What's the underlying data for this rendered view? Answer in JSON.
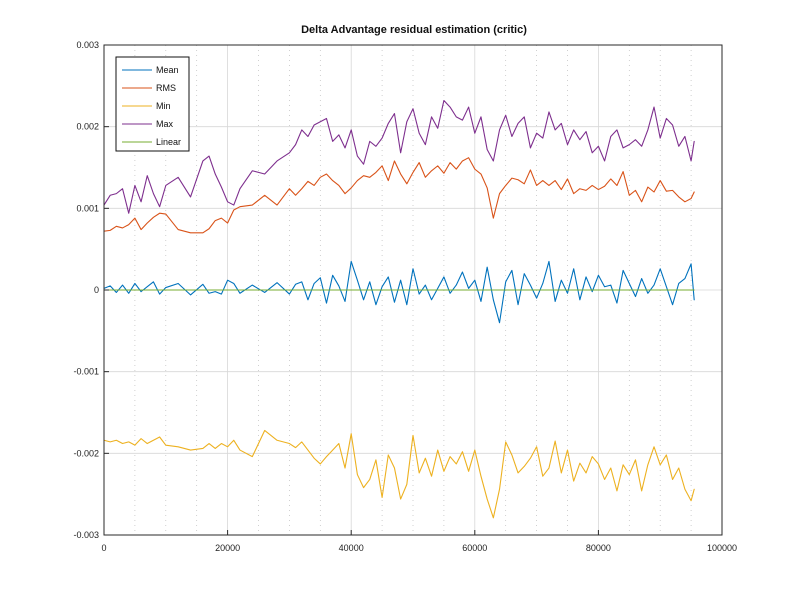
{
  "chart_data": {
    "type": "line",
    "title": "Delta Advantage residual estimation (critic)",
    "xlabel": "",
    "ylabel": "",
    "xlim": [
      0,
      100000
    ],
    "ylim": [
      -0.003,
      0.003
    ],
    "x_ticks": [
      0,
      20000,
      40000,
      60000,
      80000,
      100000
    ],
    "x_tick_labels": [
      "0",
      "20000",
      "40000",
      "60000",
      "80000",
      "100000"
    ],
    "y_ticks": [
      -0.003,
      -0.002,
      -0.001,
      0,
      0.001,
      0.002,
      0.003
    ],
    "y_tick_labels": [
      "-0.003",
      "-0.002",
      "-0.001",
      "0",
      "0.001",
      "0.002",
      "0.003"
    ],
    "grid": true,
    "minor_grid": true,
    "legend_position": "top-left",
    "series": [
      {
        "name": "Mean",
        "color": "#0072bd",
        "x": [
          0,
          1000,
          2000,
          3000,
          4000,
          5000,
          6000,
          7000,
          8000,
          9000,
          10000,
          12000,
          14000,
          16000,
          17000,
          18000,
          19000,
          20000,
          21000,
          22000,
          24000,
          26000,
          28000,
          30000,
          31000,
          32000,
          33000,
          34000,
          35000,
          36000,
          37000,
          38000,
          39000,
          40000,
          41000,
          42000,
          43000,
          44000,
          45000,
          46000,
          47000,
          48000,
          49000,
          50000,
          51000,
          52000,
          53000,
          54000,
          55000,
          56000,
          57000,
          58000,
          59000,
          60000,
          61000,
          62000,
          63000,
          64000,
          65000,
          66000,
          67000,
          68000,
          69000,
          70000,
          71000,
          72000,
          73000,
          74000,
          75000,
          76000,
          77000,
          78000,
          79000,
          80000,
          81000,
          82000,
          83000,
          84000,
          85000,
          86000,
          87000,
          88000,
          89000,
          90000,
          91000,
          92000,
          93000,
          94000,
          95000,
          95500
        ],
        "y": [
          2e-05,
          5e-05,
          -3e-05,
          6e-05,
          -4e-05,
          8e-05,
          -2e-05,
          4e-05,
          0.0001,
          -5e-05,
          3e-05,
          8e-05,
          -6e-05,
          7e-05,
          -4e-05,
          -2e-05,
          -5e-05,
          0.00012,
          8e-05,
          -4e-05,
          6e-05,
          -3e-05,
          9e-05,
          -5e-05,
          7e-05,
          0.0001,
          -0.00012,
          8e-05,
          0.00015,
          -0.00016,
          0.00018,
          5e-05,
          -0.00014,
          0.00035,
          0.00012,
          -0.00012,
          0.0001,
          -0.00018,
          4e-05,
          0.00016,
          -0.00015,
          0.00012,
          -0.00018,
          0.00026,
          -5e-05,
          6e-05,
          -0.00012,
          2e-05,
          0.00016,
          -4e-05,
          6e-05,
          0.00022,
          2e-05,
          0.00012,
          -0.00014,
          0.00028,
          -0.00012,
          -0.0004,
          0.0001,
          0.00024,
          -0.00018,
          0.0002,
          6e-05,
          -0.0001,
          8e-05,
          0.00035,
          -0.00014,
          0.00012,
          -4e-05,
          0.00026,
          -0.00012,
          0.00016,
          -2e-05,
          0.00018,
          4e-05,
          6e-05,
          -0.00016,
          0.00024,
          8e-05,
          -8e-05,
          0.00014,
          -4e-05,
          6e-05,
          0.00026,
          4e-05,
          -0.00018,
          8e-05,
          0.00014,
          0.00032,
          -0.00012
        ]
      },
      {
        "name": "RMS",
        "color": "#d95319",
        "x": [
          0,
          1000,
          2000,
          3000,
          4000,
          5000,
          6000,
          7000,
          8000,
          9000,
          10000,
          12000,
          14000,
          16000,
          17000,
          18000,
          19000,
          20000,
          21000,
          22000,
          24000,
          26000,
          28000,
          30000,
          31000,
          32000,
          33000,
          34000,
          35000,
          36000,
          37000,
          38000,
          39000,
          40000,
          41000,
          42000,
          43000,
          44000,
          45000,
          46000,
          47000,
          48000,
          49000,
          50000,
          51000,
          52000,
          53000,
          54000,
          55000,
          56000,
          57000,
          58000,
          59000,
          60000,
          61000,
          62000,
          63000,
          64000,
          65000,
          66000,
          67000,
          68000,
          69000,
          70000,
          71000,
          72000,
          73000,
          74000,
          75000,
          76000,
          77000,
          78000,
          79000,
          80000,
          81000,
          82000,
          83000,
          84000,
          85000,
          86000,
          87000,
          88000,
          89000,
          90000,
          91000,
          92000,
          93000,
          94000,
          95000,
          95500
        ],
        "y": [
          0.00072,
          0.00073,
          0.00078,
          0.00076,
          0.0008,
          0.00088,
          0.00074,
          0.00082,
          0.00089,
          0.00094,
          0.00093,
          0.00074,
          0.0007,
          0.0007,
          0.00075,
          0.00085,
          0.00088,
          0.00082,
          0.00098,
          0.00102,
          0.00104,
          0.00116,
          0.00104,
          0.00124,
          0.00116,
          0.00124,
          0.00133,
          0.00128,
          0.00138,
          0.00142,
          0.00134,
          0.00128,
          0.00118,
          0.00125,
          0.00134,
          0.0014,
          0.00138,
          0.00144,
          0.00152,
          0.00134,
          0.00158,
          0.00142,
          0.0013,
          0.00144,
          0.00156,
          0.00138,
          0.00146,
          0.00152,
          0.00143,
          0.00156,
          0.00148,
          0.00158,
          0.00162,
          0.00148,
          0.00142,
          0.00125,
          0.00088,
          0.00118,
          0.00128,
          0.00137,
          0.00135,
          0.0013,
          0.00147,
          0.00128,
          0.00134,
          0.00128,
          0.00134,
          0.00123,
          0.00136,
          0.00118,
          0.00124,
          0.00122,
          0.00128,
          0.00123,
          0.00127,
          0.00136,
          0.00128,
          0.00145,
          0.00116,
          0.00122,
          0.00108,
          0.00126,
          0.0012,
          0.00134,
          0.00121,
          0.00122,
          0.00114,
          0.00108,
          0.00112,
          0.0012
        ]
      },
      {
        "name": "Min",
        "color": "#edb120",
        "x": [
          0,
          1000,
          2000,
          3000,
          4000,
          5000,
          6000,
          7000,
          8000,
          9000,
          10000,
          12000,
          14000,
          16000,
          17000,
          18000,
          19000,
          20000,
          21000,
          22000,
          24000,
          26000,
          28000,
          30000,
          31000,
          32000,
          33000,
          34000,
          35000,
          36000,
          37000,
          38000,
          39000,
          40000,
          41000,
          42000,
          43000,
          44000,
          45000,
          46000,
          47000,
          48000,
          49000,
          50000,
          51000,
          52000,
          53000,
          54000,
          55000,
          56000,
          57000,
          58000,
          59000,
          60000,
          61000,
          62000,
          63000,
          64000,
          65000,
          66000,
          67000,
          68000,
          69000,
          70000,
          71000,
          72000,
          73000,
          74000,
          75000,
          76000,
          77000,
          78000,
          79000,
          80000,
          81000,
          82000,
          83000,
          84000,
          85000,
          86000,
          87000,
          88000,
          89000,
          90000,
          91000,
          92000,
          93000,
          94000,
          95000,
          95500
        ],
        "y": [
          -0.00184,
          -0.00186,
          -0.00184,
          -0.00188,
          -0.00186,
          -0.0019,
          -0.00182,
          -0.00188,
          -0.00184,
          -0.0018,
          -0.0019,
          -0.00192,
          -0.00196,
          -0.00194,
          -0.00188,
          -0.00194,
          -0.00188,
          -0.00192,
          -0.00184,
          -0.00196,
          -0.00204,
          -0.00172,
          -0.00184,
          -0.00188,
          -0.00193,
          -0.00186,
          -0.00196,
          -0.00206,
          -0.00213,
          -0.00204,
          -0.00196,
          -0.00188,
          -0.00218,
          -0.00176,
          -0.00226,
          -0.00242,
          -0.00232,
          -0.00208,
          -0.00254,
          -0.00202,
          -0.00218,
          -0.00256,
          -0.00238,
          -0.00178,
          -0.00224,
          -0.00206,
          -0.00228,
          -0.00196,
          -0.00222,
          -0.00204,
          -0.00213,
          -0.00198,
          -0.00222,
          -0.00196,
          -0.00228,
          -0.00256,
          -0.00279,
          -0.00244,
          -0.00186,
          -0.00202,
          -0.00224,
          -0.00216,
          -0.00206,
          -0.00192,
          -0.00228,
          -0.00218,
          -0.00185,
          -0.00224,
          -0.00196,
          -0.00234,
          -0.00212,
          -0.00224,
          -0.00204,
          -0.00213,
          -0.00232,
          -0.00218,
          -0.00246,
          -0.00214,
          -0.00226,
          -0.00208,
          -0.00246,
          -0.00214,
          -0.00192,
          -0.00214,
          -0.00202,
          -0.00232,
          -0.00218,
          -0.00244,
          -0.00258,
          -0.00244
        ]
      },
      {
        "name": "Max",
        "color": "#7e2f8e",
        "x": [
          0,
          1000,
          2000,
          3000,
          4000,
          5000,
          6000,
          7000,
          8000,
          9000,
          10000,
          12000,
          14000,
          16000,
          17000,
          18000,
          19000,
          20000,
          21000,
          22000,
          24000,
          26000,
          28000,
          30000,
          31000,
          32000,
          33000,
          34000,
          35000,
          36000,
          37000,
          38000,
          39000,
          40000,
          41000,
          42000,
          43000,
          44000,
          45000,
          46000,
          47000,
          48000,
          49000,
          50000,
          51000,
          52000,
          53000,
          54000,
          55000,
          56000,
          57000,
          58000,
          59000,
          60000,
          61000,
          62000,
          63000,
          64000,
          65000,
          66000,
          67000,
          68000,
          69000,
          70000,
          71000,
          72000,
          73000,
          74000,
          75000,
          76000,
          77000,
          78000,
          79000,
          80000,
          81000,
          82000,
          83000,
          84000,
          85000,
          86000,
          87000,
          88000,
          89000,
          90000,
          91000,
          92000,
          93000,
          94000,
          95000,
          95500
        ],
        "y": [
          0.00104,
          0.00116,
          0.00118,
          0.00124,
          0.00094,
          0.00128,
          0.00108,
          0.0014,
          0.00118,
          0.00102,
          0.00128,
          0.00138,
          0.00114,
          0.00158,
          0.00164,
          0.00142,
          0.00126,
          0.00108,
          0.00104,
          0.00124,
          0.00146,
          0.00142,
          0.00158,
          0.00168,
          0.00178,
          0.00196,
          0.00188,
          0.00202,
          0.00206,
          0.0021,
          0.00182,
          0.0019,
          0.00174,
          0.00196,
          0.00164,
          0.00154,
          0.00182,
          0.00176,
          0.00186,
          0.00204,
          0.00216,
          0.00168,
          0.00206,
          0.00222,
          0.00192,
          0.00178,
          0.00212,
          0.00198,
          0.00232,
          0.00224,
          0.00212,
          0.00208,
          0.00224,
          0.00192,
          0.00212,
          0.00172,
          0.00158,
          0.00196,
          0.00214,
          0.00188,
          0.00204,
          0.00212,
          0.00174,
          0.00192,
          0.00186,
          0.00218,
          0.00196,
          0.00204,
          0.00178,
          0.00196,
          0.00184,
          0.00194,
          0.00168,
          0.00176,
          0.00158,
          0.00188,
          0.00196,
          0.00174,
          0.00178,
          0.00184,
          0.00176,
          0.00196,
          0.00224,
          0.00186,
          0.0021,
          0.00202,
          0.00176,
          0.00188,
          0.00158,
          0.00182
        ]
      },
      {
        "name": "Linear",
        "color": "#77ac30",
        "x": [
          0,
          95500
        ],
        "y": [
          0,
          0
        ]
      }
    ]
  }
}
